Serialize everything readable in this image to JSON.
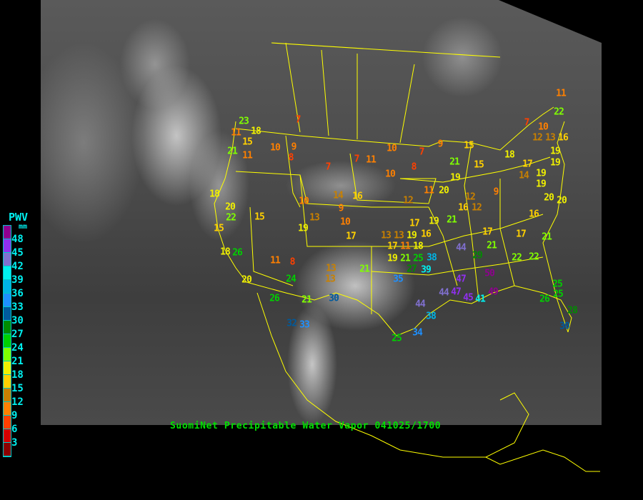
{
  "caption": "SuomiNet Precipitable Water Vapor 041025/1700",
  "legend": {
    "title": "PWV",
    "unit": "mm",
    "ticks": [
      "48",
      "45",
      "42",
      "39",
      "36",
      "33",
      "30",
      "27",
      "24",
      "21",
      "18",
      "15",
      "12",
      "9",
      "6",
      "3"
    ],
    "colors_top_to_bottom": [
      "#900090",
      "#9030f0",
      "#8070d0",
      "#00f0f0",
      "#00b4e6",
      "#1e90ff",
      "#005a9c",
      "#008c00",
      "#00d000",
      "#80ff00",
      "#f0f000",
      "#ffd000",
      "#c88000",
      "#ff8000",
      "#ff4000",
      "#d40000",
      "#8b0000"
    ]
  },
  "border_color": "#ffff00",
  "stations": [
    {
      "value": "7"
    },
    {
      "value": "23"
    },
    {
      "value": "18"
    },
    {
      "value": "11"
    },
    {
      "value": "15"
    },
    {
      "value": "21"
    },
    {
      "value": "11"
    },
    {
      "value": "10"
    },
    {
      "value": "9"
    },
    {
      "value": "8"
    },
    {
      "value": "7"
    },
    {
      "value": "7"
    },
    {
      "value": "11"
    },
    {
      "value": "10"
    },
    {
      "value": "10"
    },
    {
      "value": "8"
    },
    {
      "value": "7"
    },
    {
      "value": "9"
    },
    {
      "value": "18"
    },
    {
      "value": "20"
    },
    {
      "value": "22"
    },
    {
      "value": "15"
    },
    {
      "value": "15"
    },
    {
      "value": "10"
    },
    {
      "value": "14"
    },
    {
      "value": "16"
    },
    {
      "value": "9"
    },
    {
      "value": "10"
    },
    {
      "value": "13"
    },
    {
      "value": "19"
    },
    {
      "value": "17"
    },
    {
      "value": "12"
    },
    {
      "value": "11"
    },
    {
      "value": "20"
    },
    {
      "value": "17"
    },
    {
      "value": "13"
    },
    {
      "value": "13"
    },
    {
      "value": "19"
    },
    {
      "value": "16"
    },
    {
      "value": "17"
    },
    {
      "value": "11"
    },
    {
      "value": "18"
    },
    {
      "value": "19"
    },
    {
      "value": "21"
    },
    {
      "value": "15"
    },
    {
      "value": "15"
    },
    {
      "value": "18"
    },
    {
      "value": "7"
    },
    {
      "value": "11"
    },
    {
      "value": "22"
    },
    {
      "value": "10"
    },
    {
      "value": "12"
    },
    {
      "value": "13"
    },
    {
      "value": "16"
    },
    {
      "value": "19"
    },
    {
      "value": "19"
    },
    {
      "value": "17"
    },
    {
      "value": "14"
    },
    {
      "value": "19"
    },
    {
      "value": "19"
    },
    {
      "value": "20"
    },
    {
      "value": "20"
    },
    {
      "value": "9"
    },
    {
      "value": "12"
    },
    {
      "value": "16"
    },
    {
      "value": "12"
    },
    {
      "value": "19"
    },
    {
      "value": "21"
    },
    {
      "value": "16"
    },
    {
      "value": "17"
    },
    {
      "value": "17"
    },
    {
      "value": "21"
    },
    {
      "value": "26"
    },
    {
      "value": "18"
    },
    {
      "value": "11"
    },
    {
      "value": "8"
    },
    {
      "value": "24"
    },
    {
      "value": "20"
    },
    {
      "value": "26"
    },
    {
      "value": "21"
    },
    {
      "value": "30"
    },
    {
      "value": "13"
    },
    {
      "value": "13"
    },
    {
      "value": "21"
    },
    {
      "value": "19"
    },
    {
      "value": "21"
    },
    {
      "value": "25"
    },
    {
      "value": "27"
    },
    {
      "value": "38"
    },
    {
      "value": "39"
    },
    {
      "value": "35"
    },
    {
      "value": "44"
    },
    {
      "value": "29"
    },
    {
      "value": "21"
    },
    {
      "value": "22"
    },
    {
      "value": "22"
    },
    {
      "value": "50"
    },
    {
      "value": "47"
    },
    {
      "value": "44"
    },
    {
      "value": "47"
    },
    {
      "value": "45"
    },
    {
      "value": "41"
    },
    {
      "value": "49"
    },
    {
      "value": "44"
    },
    {
      "value": "38"
    },
    {
      "value": "34"
    },
    {
      "value": "25"
    },
    {
      "value": "33"
    },
    {
      "value": "32"
    },
    {
      "value": "25"
    },
    {
      "value": "25"
    },
    {
      "value": "26"
    },
    {
      "value": "28"
    },
    {
      "value": "30"
    }
  ]
}
